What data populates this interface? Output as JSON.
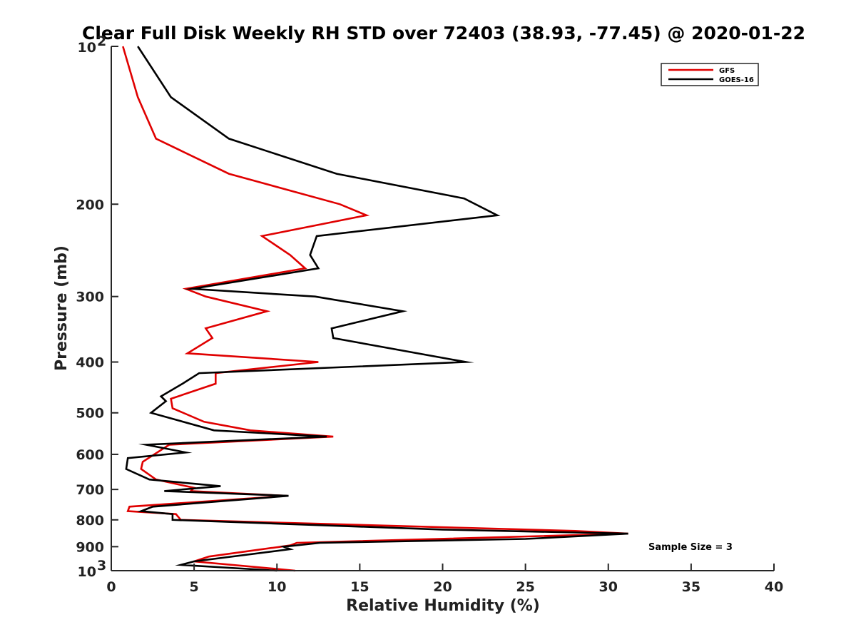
{
  "chart_data": {
    "type": "line",
    "title": "Clear Full Disk Weekly RH STD over 72403 (38.93, -77.45) @ 2020-01-22",
    "xlabel": "Relative Humidity (%)",
    "ylabel": "Pressure (mb)",
    "xlim": [
      0,
      40
    ],
    "ylim": [
      100,
      1000
    ],
    "y_scale": "log",
    "y_reversed": true,
    "grid": false,
    "legend_position": "top-right",
    "x_ticks": [
      0,
      5,
      10,
      15,
      20,
      25,
      30,
      35,
      40
    ],
    "y_ticks": [
      {
        "value": 100,
        "label": "10",
        "sup": "2"
      },
      {
        "value": 200,
        "label": "200",
        "sup": ""
      },
      {
        "value": 300,
        "label": "300",
        "sup": ""
      },
      {
        "value": 400,
        "label": "400",
        "sup": ""
      },
      {
        "value": 500,
        "label": "500",
        "sup": ""
      },
      {
        "value": 600,
        "label": "600",
        "sup": ""
      },
      {
        "value": 700,
        "label": "700",
        "sup": ""
      },
      {
        "value": 800,
        "label": "800",
        "sup": ""
      },
      {
        "value": 900,
        "label": "900",
        "sup": ""
      },
      {
        "value": 1000,
        "label": "10",
        "sup": "3"
      }
    ],
    "annotation": "Sample Size = 3",
    "series": [
      {
        "name": "GFS",
        "color": "#e00000",
        "points": [
          [
            0.7,
            100
          ],
          [
            1.6,
            125
          ],
          [
            2.7,
            150
          ],
          [
            7.1,
            175
          ],
          [
            13.8,
            200
          ],
          [
            15.4,
            210
          ],
          [
            9.1,
            230
          ],
          [
            10.8,
            250
          ],
          [
            11.7,
            265
          ],
          [
            4.5,
            290
          ],
          [
            5.7,
            300
          ],
          [
            9.4,
            320
          ],
          [
            5.7,
            345
          ],
          [
            6.1,
            360
          ],
          [
            4.6,
            385
          ],
          [
            12.5,
            400
          ],
          [
            6.3,
            420
          ],
          [
            6.3,
            440
          ],
          [
            3.6,
            470
          ],
          [
            3.7,
            490
          ],
          [
            5.6,
            520
          ],
          [
            8.4,
            540
          ],
          [
            13.4,
            555
          ],
          [
            3.5,
            575
          ],
          [
            1.9,
            620
          ],
          [
            1.8,
            640
          ],
          [
            2.7,
            670
          ],
          [
            5.0,
            695
          ],
          [
            4.8,
            705
          ],
          [
            10.6,
            720
          ],
          [
            1.1,
            755
          ],
          [
            1.0,
            770
          ],
          [
            3.9,
            780
          ],
          [
            4.2,
            800
          ],
          [
            28.0,
            840
          ],
          [
            31.2,
            850
          ],
          [
            11.2,
            885
          ],
          [
            10.8,
            895
          ],
          [
            5.9,
            940
          ],
          [
            5.0,
            960
          ],
          [
            11.1,
            1000
          ]
        ]
      },
      {
        "name": "GOES-16",
        "color": "#000000",
        "points": [
          [
            1.6,
            100
          ],
          [
            3.6,
            125
          ],
          [
            7.1,
            150
          ],
          [
            13.6,
            175
          ],
          [
            21.3,
            195
          ],
          [
            23.3,
            210
          ],
          [
            12.4,
            230
          ],
          [
            12.0,
            250
          ],
          [
            12.5,
            265
          ],
          [
            4.9,
            290
          ],
          [
            12.3,
            300
          ],
          [
            17.6,
            320
          ],
          [
            13.3,
            345
          ],
          [
            13.4,
            360
          ],
          [
            21.4,
            400
          ],
          [
            5.3,
            420
          ],
          [
            4.3,
            440
          ],
          [
            3.0,
            465
          ],
          [
            3.3,
            475
          ],
          [
            2.4,
            500
          ],
          [
            6.2,
            540
          ],
          [
            13.0,
            555
          ],
          [
            2.1,
            575
          ],
          [
            4.5,
            595
          ],
          [
            1.0,
            610
          ],
          [
            0.9,
            640
          ],
          [
            2.3,
            670
          ],
          [
            6.6,
            690
          ],
          [
            3.2,
            705
          ],
          [
            10.7,
            720
          ],
          [
            2.5,
            755
          ],
          [
            1.8,
            770
          ],
          [
            3.7,
            780
          ],
          [
            3.7,
            800
          ],
          [
            20.0,
            835
          ],
          [
            31.2,
            850
          ],
          [
            25.0,
            870
          ],
          [
            12.6,
            885
          ],
          [
            10.4,
            900
          ],
          [
            10.8,
            910
          ],
          [
            5.0,
            960
          ],
          [
            4.2,
            975
          ],
          [
            10.0,
            1000
          ]
        ]
      }
    ]
  }
}
